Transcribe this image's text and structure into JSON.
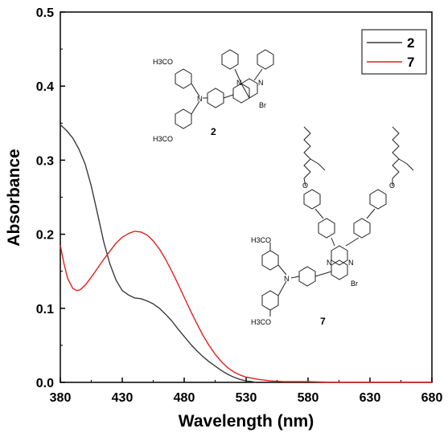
{
  "chart_data": {
    "type": "line",
    "xlabel": "Wavelength (nm)",
    "ylabel": "Absorbance",
    "xlim": [
      380,
      680
    ],
    "ylim": [
      0.0,
      0.5
    ],
    "xticks": [
      "380",
      "430",
      "480",
      "530",
      "580",
      "630",
      "680"
    ],
    "yticks": [
      "0.0",
      "0.1",
      "0.2",
      "0.3",
      "0.4",
      "0.5"
    ],
    "legend_position": "top-right",
    "series": [
      {
        "name": "2",
        "color": "#3a3a3a",
        "points": [
          [
            380,
            0.348
          ],
          [
            385,
            0.34
          ],
          [
            390,
            0.33
          ],
          [
            395,
            0.315
          ],
          [
            400,
            0.295
          ],
          [
            405,
            0.265
          ],
          [
            410,
            0.228
          ],
          [
            415,
            0.19
          ],
          [
            420,
            0.16
          ],
          [
            425,
            0.138
          ],
          [
            430,
            0.124
          ],
          [
            435,
            0.118
          ],
          [
            440,
            0.114
          ],
          [
            445,
            0.113
          ],
          [
            450,
            0.11
          ],
          [
            455,
            0.106
          ],
          [
            460,
            0.1
          ],
          [
            465,
            0.092
          ],
          [
            470,
            0.083
          ],
          [
            475,
            0.072
          ],
          [
            480,
            0.062
          ],
          [
            485,
            0.052
          ],
          [
            490,
            0.043
          ],
          [
            495,
            0.035
          ],
          [
            500,
            0.028
          ],
          [
            505,
            0.022
          ],
          [
            510,
            0.016
          ],
          [
            515,
            0.011
          ],
          [
            520,
            0.007
          ],
          [
            525,
            0.004
          ],
          [
            530,
            0.002
          ],
          [
            535,
            0.001
          ],
          [
            538,
            0.0
          ]
        ]
      },
      {
        "name": "7",
        "color": "#e02020",
        "points": [
          [
            380,
            0.185
          ],
          [
            383,
            0.16
          ],
          [
            386,
            0.14
          ],
          [
            390,
            0.127
          ],
          [
            393,
            0.124
          ],
          [
            396,
            0.125
          ],
          [
            400,
            0.131
          ],
          [
            405,
            0.142
          ],
          [
            410,
            0.154
          ],
          [
            415,
            0.166
          ],
          [
            420,
            0.177
          ],
          [
            425,
            0.188
          ],
          [
            430,
            0.196
          ],
          [
            435,
            0.201
          ],
          [
            440,
            0.204
          ],
          [
            445,
            0.203
          ],
          [
            450,
            0.199
          ],
          [
            455,
            0.191
          ],
          [
            460,
            0.18
          ],
          [
            465,
            0.166
          ],
          [
            470,
            0.15
          ],
          [
            475,
            0.133
          ],
          [
            480,
            0.115
          ],
          [
            485,
            0.097
          ],
          [
            490,
            0.08
          ],
          [
            495,
            0.064
          ],
          [
            500,
            0.05
          ],
          [
            505,
            0.038
          ],
          [
            510,
            0.028
          ],
          [
            515,
            0.02
          ],
          [
            520,
            0.014
          ],
          [
            525,
            0.01
          ],
          [
            530,
            0.007
          ],
          [
            540,
            0.004
          ],
          [
            550,
            0.002
          ],
          [
            560,
            0.001
          ],
          [
            580,
            0.001
          ],
          [
            600,
            0.0
          ],
          [
            640,
            0.0
          ],
          [
            680,
            0.0
          ]
        ]
      }
    ]
  },
  "molecules": {
    "compound_2": {
      "label": "2",
      "methoxy_top": "H3CO",
      "methoxy_bottom": "H3CO",
      "nitrogen": "N",
      "ring_n1": "N",
      "ring_n2": "N",
      "bromo": "Br"
    },
    "compound_7": {
      "label": "7",
      "methoxy_top": "H3CO",
      "methoxy_bottom": "H3CO",
      "nitrogen": "N",
      "ring_n1": "N",
      "ring_n2": "N",
      "bromo": "Br",
      "ether_left": "O",
      "ether_right": "O"
    }
  }
}
